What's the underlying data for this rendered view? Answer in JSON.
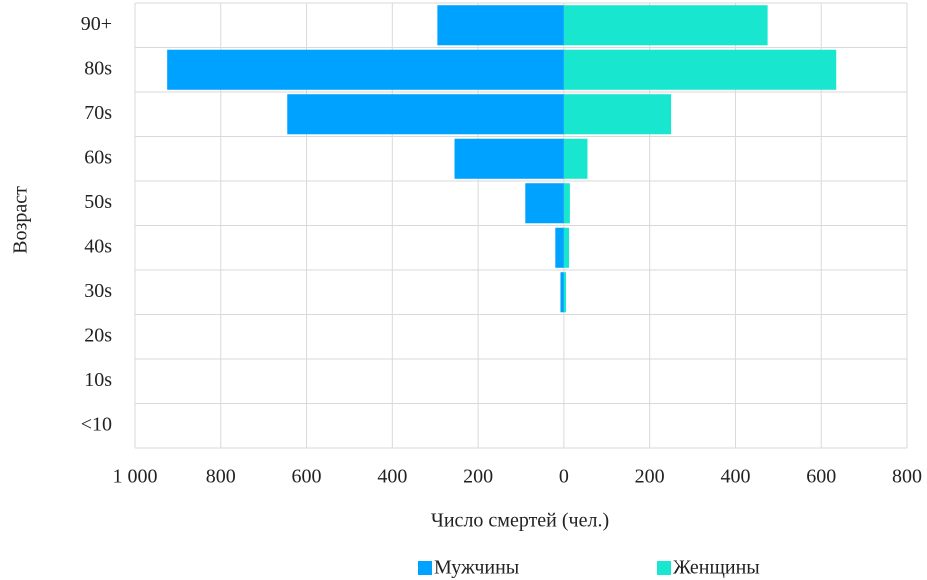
{
  "chart_data": {
    "type": "pyramid",
    "x_label": "Число смертей (чел.)",
    "y_label": "Возраст",
    "categories": [
      "<10",
      "10s",
      "20s",
      "30s",
      "40s",
      "50s",
      "60s",
      "70s",
      "80s",
      "90+"
    ],
    "series": [
      {
        "name": "Мужчины",
        "color": "#00a2ff",
        "values": [
          0,
          0,
          0,
          -8,
          -20,
          -90,
          -255,
          -645,
          -925,
          -295
        ]
      },
      {
        "name": "Женщины",
        "color": "#19e6cf",
        "values": [
          0,
          0,
          0,
          5,
          12,
          14,
          55,
          250,
          635,
          475
        ]
      }
    ],
    "xlim": [
      -1000,
      800
    ],
    "xticks": [
      {
        "value": -1000,
        "label": "1 000"
      },
      {
        "value": -800,
        "label": "800"
      },
      {
        "value": -600,
        "label": "600"
      },
      {
        "value": -400,
        "label": "400"
      },
      {
        "value": -200,
        "label": "200"
      },
      0,
      200,
      400,
      600,
      800
    ],
    "grid": true,
    "legend": "bottom"
  }
}
